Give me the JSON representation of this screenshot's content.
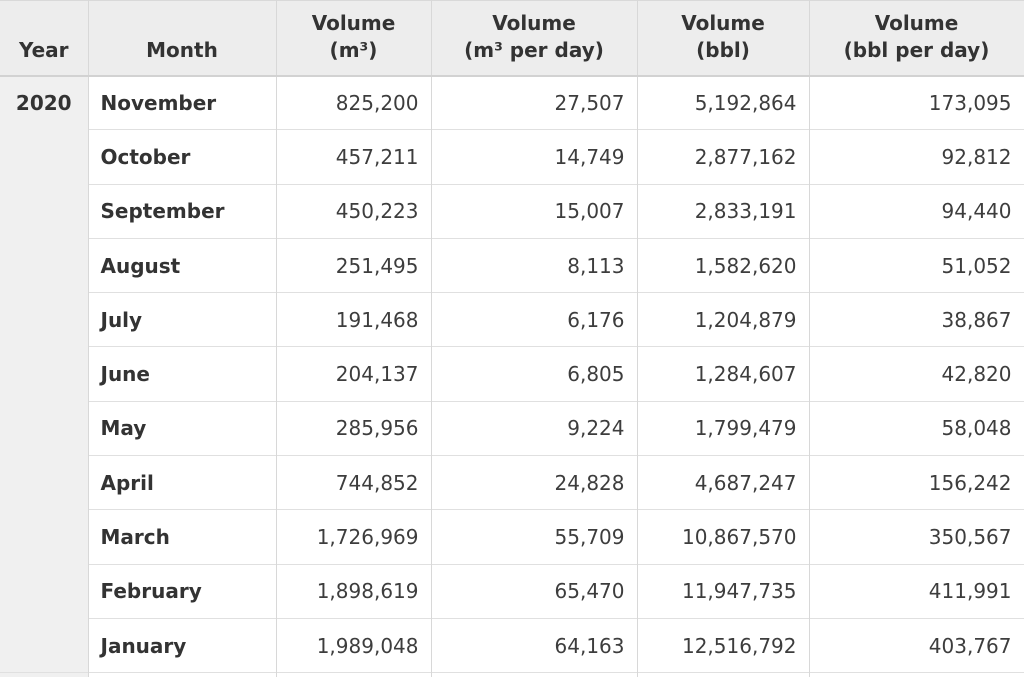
{
  "chart_data": {
    "type": "table",
    "columns": [
      "Year",
      "Month",
      "Volume\n(m³)",
      "Volume\n(m³ per day)",
      "Volume\n(bbl)",
      "Volume\n(bbl per day)"
    ],
    "year_group": "2020",
    "rows": [
      {
        "month": "November",
        "volume_m3": "825,200",
        "volume_m3_per_day": "27,507",
        "volume_bbl": "5,192,864",
        "volume_bbl_per_day": "173,095"
      },
      {
        "month": "October",
        "volume_m3": "457,211",
        "volume_m3_per_day": "14,749",
        "volume_bbl": "2,877,162",
        "volume_bbl_per_day": "92,812"
      },
      {
        "month": "September",
        "volume_m3": "450,223",
        "volume_m3_per_day": "15,007",
        "volume_bbl": "2,833,191",
        "volume_bbl_per_day": "94,440"
      },
      {
        "month": "August",
        "volume_m3": "251,495",
        "volume_m3_per_day": "8,113",
        "volume_bbl": "1,582,620",
        "volume_bbl_per_day": "51,052"
      },
      {
        "month": "July",
        "volume_m3": "191,468",
        "volume_m3_per_day": "6,176",
        "volume_bbl": "1,204,879",
        "volume_bbl_per_day": "38,867"
      },
      {
        "month": "June",
        "volume_m3": "204,137",
        "volume_m3_per_day": "6,805",
        "volume_bbl": "1,284,607",
        "volume_bbl_per_day": "42,820"
      },
      {
        "month": "May",
        "volume_m3": "285,956",
        "volume_m3_per_day": "9,224",
        "volume_bbl": "1,799,479",
        "volume_bbl_per_day": "58,048"
      },
      {
        "month": "April",
        "volume_m3": "744,852",
        "volume_m3_per_day": "24,828",
        "volume_bbl": "4,687,247",
        "volume_bbl_per_day": "156,242"
      },
      {
        "month": "March",
        "volume_m3": "1,726,969",
        "volume_m3_per_day": "55,709",
        "volume_bbl": "10,867,570",
        "volume_bbl_per_day": "350,567"
      },
      {
        "month": "February",
        "volume_m3": "1,898,619",
        "volume_m3_per_day": "65,470",
        "volume_bbl": "11,947,735",
        "volume_bbl_per_day": "411,991"
      },
      {
        "month": "January",
        "volume_m3": "1,989,048",
        "volume_m3_per_day": "64,163",
        "volume_bbl": "12,516,792",
        "volume_bbl_per_day": "403,767"
      }
    ]
  },
  "colors": {
    "header_bg": "#ededed",
    "year_col_bg": "#f0f0f0",
    "border_vertical": "#d8d8d8",
    "border_horizontal": "#e0e0e0",
    "header_border_bottom": "#d2d2d2",
    "text_bold": "#333333",
    "text_number": "#3d3d3d",
    "row_bg": "#ffffff"
  }
}
